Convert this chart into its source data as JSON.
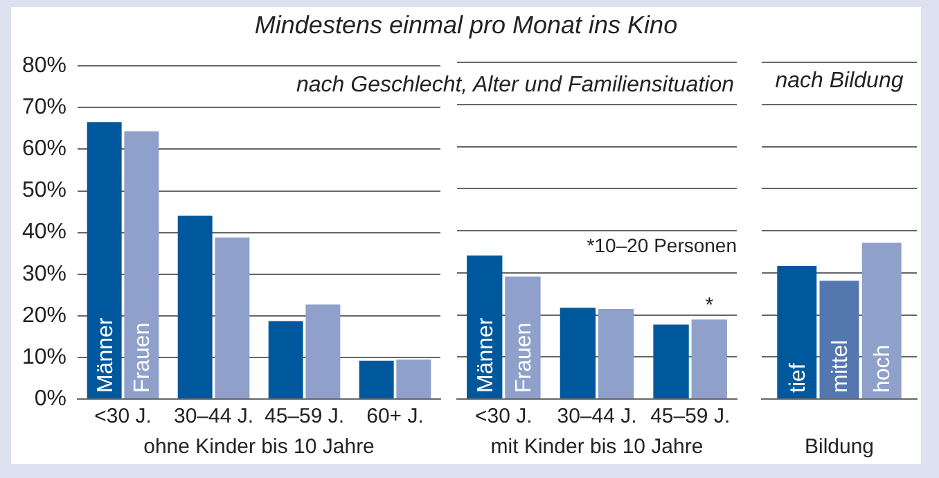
{
  "chart_data": [
    {
      "type": "bar",
      "title": "Mindestens einmal pro Monat ins Kino",
      "subtitle": "nach Geschlecht, Alter und Familiensituation",
      "xlabel": "ohne Kinder bis 10 Jahre",
      "categories": [
        "<30 J.",
        "30–44 J.",
        "45–59 J.",
        "60+ J."
      ],
      "series": [
        {
          "name": "Männer",
          "color": "#00589c",
          "values": [
            66.5,
            44,
            18.7,
            9.2
          ]
        },
        {
          "name": "Frauen",
          "color": "#8fa0cb",
          "values": [
            64.3,
            38.8,
            22.7,
            9.5
          ]
        }
      ],
      "ylim": [
        0,
        80
      ],
      "yticks": [
        {
          "value": 0,
          "label": "0%"
        },
        {
          "value": 10,
          "label": "10%"
        },
        {
          "value": 20,
          "label": "20%"
        },
        {
          "value": 30,
          "label": "30%"
        },
        {
          "value": 40,
          "label": "40%"
        },
        {
          "value": 50,
          "label": "50%"
        },
        {
          "value": 60,
          "label": "60%"
        },
        {
          "value": 70,
          "label": "70%"
        },
        {
          "value": 80,
          "label": "80%"
        }
      ],
      "grid": "y",
      "legend": false
    },
    {
      "type": "bar",
      "xlabel": "mit Kinder bis 10 Jahre",
      "categories": [
        "<30 J.",
        "30–44 J.",
        "45–59 J."
      ],
      "series": [
        {
          "name": "Männer",
          "color": "#00589c",
          "values": [
            34.1,
            21.7,
            17.7
          ]
        },
        {
          "name": "Frauen",
          "color": "#8fa0cb",
          "values": [
            29.1,
            21.4,
            18.9
          ]
        }
      ],
      "annotations": [
        "*10–20 Personen",
        {
          "text": "*",
          "x": "45–59 J.",
          "y": 18.9
        }
      ],
      "ylim": [
        0,
        80
      ],
      "yticks": [
        0,
        10,
        20,
        30,
        40,
        50,
        60,
        70,
        80
      ],
      "grid": "y",
      "legend": false,
      "tick_labels": "x"
    },
    {
      "type": "bar",
      "subtitle": "nach Bildung",
      "xlabel": "Bildung",
      "categories": [
        null
      ],
      "series": [
        {
          "name": "tief",
          "color": "#00589c",
          "values": [
            31.6
          ]
        },
        {
          "name": "mittel",
          "color": "#5577b0",
          "values": [
            28.1
          ]
        },
        {
          "name": "hoch",
          "color": "#8fa0cb",
          "values": [
            37.1
          ]
        }
      ],
      "ylim": [
        0,
        80
      ],
      "yticks": [
        0,
        10,
        20,
        30,
        40,
        50,
        60,
        70,
        80
      ],
      "grid": "y",
      "legend": false,
      "tick_labels": "x"
    }
  ]
}
